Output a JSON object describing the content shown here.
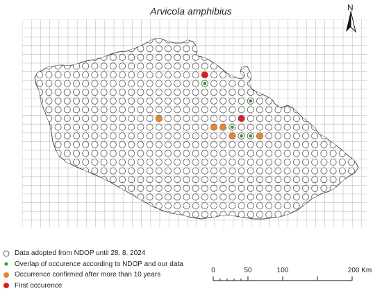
{
  "map": {
    "title": "Arvicola amphibius",
    "north_label": "N",
    "colors": {
      "grid": "#bdbdbd",
      "border": "#444444",
      "ndop_circle": "#555555",
      "overlap": "#2ca02c",
      "confirmed": "#e8872a",
      "first": "#e31a1c"
    }
  },
  "legend": {
    "items": [
      {
        "key": "ndop",
        "label": "Data adopted from NDOP until 28. 8. 2024"
      },
      {
        "key": "overlap",
        "label": "Overlap of occurence according to NDOP and our data"
      },
      {
        "key": "confirmed",
        "label": "Occurrence confirmed after more than 10 years"
      },
      {
        "key": "first",
        "label": "First occurence"
      }
    ]
  },
  "scale": {
    "ticks": [
      "0",
      "50",
      "100",
      "",
      "200 Km"
    ],
    "unit": "Km"
  },
  "markers": [
    {
      "type": "first",
      "col": 19,
      "row": 5
    },
    {
      "type": "overlap",
      "col": 19,
      "row": 6
    },
    {
      "type": "overlap",
      "col": 24,
      "row": 8
    },
    {
      "type": "first",
      "col": 23,
      "row": 10
    },
    {
      "type": "confirmed",
      "col": 14,
      "row": 10
    },
    {
      "type": "confirmed",
      "col": 20,
      "row": 11
    },
    {
      "type": "confirmed",
      "col": 21,
      "row": 11
    },
    {
      "type": "overlap",
      "col": 22,
      "row": 11
    },
    {
      "type": "confirmed",
      "col": 22,
      "row": 12
    },
    {
      "type": "overlap",
      "col": 23,
      "row": 12
    },
    {
      "type": "overlap",
      "col": 24,
      "row": 12
    },
    {
      "type": "confirmed",
      "col": 25,
      "row": 12
    }
  ]
}
